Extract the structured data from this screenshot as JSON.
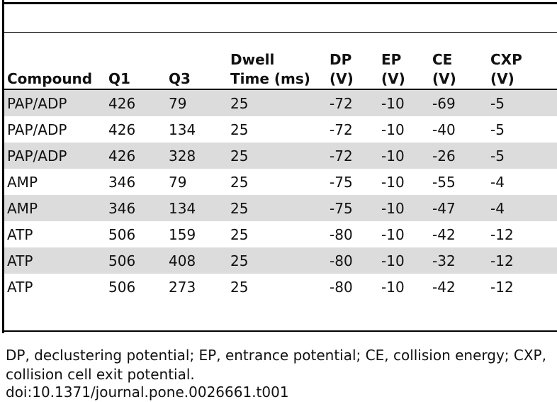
{
  "table": {
    "headers": [
      {
        "line1": "",
        "line2": "Compound"
      },
      {
        "line1": "",
        "line2": "Q1"
      },
      {
        "line1": "",
        "line2": "Q3"
      },
      {
        "line1": "Dwell",
        "line2": "Time (ms)"
      },
      {
        "line1": "DP",
        "line2": "(V)"
      },
      {
        "line1": "EP",
        "line2": "(V)"
      },
      {
        "line1": "CE",
        "line2": "(V)"
      },
      {
        "line1": "CXP",
        "line2": "(V)"
      }
    ],
    "rows": [
      [
        "PAP/ADP",
        "426",
        "79",
        "25",
        "-72",
        "-10",
        "-69",
        "-5"
      ],
      [
        "PAP/ADP",
        "426",
        "134",
        "25",
        "-72",
        "-10",
        "-40",
        "-5"
      ],
      [
        "PAP/ADP",
        "426",
        "328",
        "25",
        "-72",
        "-10",
        "-26",
        "-5"
      ],
      [
        "AMP",
        "346",
        "79",
        "25",
        "-75",
        "-10",
        "-55",
        "-4"
      ],
      [
        "AMP",
        "346",
        "134",
        "25",
        "-75",
        "-10",
        "-47",
        "-4"
      ],
      [
        "ATP",
        "506",
        "159",
        "25",
        "-80",
        "-10",
        "-42",
        "-12"
      ],
      [
        "ATP",
        "506",
        "408",
        "25",
        "-80",
        "-10",
        "-32",
        "-12"
      ],
      [
        "ATP",
        "506",
        "273",
        "25",
        "-80",
        "-10",
        "-42",
        "-12"
      ]
    ],
    "shade_color": "#dcdcdc"
  },
  "footnote": "DP, declustering potential; EP, entrance potential; CE, collision energy; CXP, collision cell exit potential.",
  "doi": "doi:10.1371/journal.pone.0026661.t001"
}
